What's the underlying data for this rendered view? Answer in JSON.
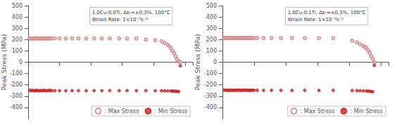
{
  "chart_data": [
    {
      "type": "scatter",
      "annotations": [
        "1.0Cu-0.0Ti, Δεₜ=±0.3%, 100°C",
        "Strain Rate: 1×10⁻³s⁻¹"
      ],
      "y_label": "Peak Stress (MPa)",
      "xlim": [
        0,
        105
      ],
      "xticks": [
        0,
        20,
        40,
        60,
        80,
        100
      ],
      "ylim": [
        -500,
        500
      ],
      "yticks": [
        -400,
        -300,
        -200,
        -100,
        0,
        100,
        200,
        300,
        400,
        500
      ],
      "grid": false,
      "legend": "lower right",
      "tick_labels": "y",
      "series": [
        {
          "name": ": Max Stress",
          "color": "#d08080",
          "marker": "open circle",
          "x": [
            1,
            2,
            3,
            4,
            5,
            6,
            7,
            8,
            9,
            10,
            11,
            12,
            13,
            14,
            15,
            17,
            20,
            24,
            28,
            32,
            37,
            42,
            47,
            52,
            58,
            63,
            69,
            75,
            81,
            85,
            87,
            89,
            90,
            91,
            92,
            93,
            94,
            95,
            96,
            97
          ],
          "values": [
            210,
            208,
            211,
            209,
            210,
            212,
            207,
            210,
            211,
            208,
            210,
            210,
            209,
            211,
            210,
            210,
            210,
            209,
            210,
            210,
            209,
            210,
            209,
            210,
            210,
            210,
            210,
            200,
            195,
            185,
            170,
            155,
            140,
            125,
            100,
            80,
            50,
            25,
            8,
            0
          ]
        },
        {
          "name": ": Min Stress",
          "color": "#cc2222",
          "marker": "circle",
          "x": [
            1,
            2,
            3,
            4,
            5,
            6,
            7,
            8,
            9,
            10,
            11,
            12,
            13,
            14,
            15,
            17,
            20,
            24,
            28,
            32,
            37,
            42,
            47,
            52,
            58,
            63,
            69,
            75,
            81,
            85,
            87,
            89,
            91,
            92,
            93,
            94,
            95,
            96,
            97
          ],
          "values": [
            -248,
            -251,
            -250,
            -253,
            -249,
            -252,
            -251,
            -250,
            -252,
            -249,
            -251,
            -252,
            -250,
            -249,
            -251,
            -251,
            -251,
            -252,
            -251,
            -251,
            -252,
            -251,
            -252,
            -251,
            -251,
            -251,
            -252,
            -251,
            -252,
            -252,
            -253,
            -253,
            -254,
            -255,
            -256,
            -257,
            -258,
            -260,
            -32
          ]
        }
      ]
    },
    {
      "type": "scatter",
      "annotations": [
        "1.0Cu-0.1Ti, Δεₜ=±0.3%, 100°C",
        "Strain Rate: 1×10⁻³s⁻¹"
      ],
      "y_label": "Peak Stress (MPa)",
      "xlim": [
        0,
        105
      ],
      "xticks": [
        0,
        20,
        40,
        60,
        80,
        100
      ],
      "ylim": [
        -500,
        500
      ],
      "yticks": [
        -400,
        -300,
        -200,
        -100,
        0,
        100,
        200,
        300,
        400,
        500
      ],
      "grid": false,
      "legend": "lower right",
      "tick_labels": "y",
      "series": [
        {
          "name": ": Max Stress",
          "color": "#d08080",
          "marker": "open circle",
          "x": [
            1,
            2,
            3,
            4,
            5,
            6,
            7,
            8,
            9,
            10,
            11,
            12,
            13,
            14,
            15,
            16,
            17,
            18,
            19,
            20,
            22,
            26,
            31,
            37,
            44,
            52,
            61,
            70,
            82,
            85,
            87,
            89,
            90,
            91,
            92,
            93,
            94,
            95,
            96
          ],
          "values": [
            215,
            213,
            214,
            216,
            213,
            215,
            214,
            216,
            213,
            215,
            214,
            213,
            215,
            214,
            213,
            215,
            214,
            215,
            213,
            214,
            214,
            213,
            214,
            213,
            214,
            213,
            213,
            213,
            190,
            175,
            160,
            145,
            135,
            125,
            105,
            85,
            55,
            30,
            0
          ]
        },
        {
          "name": ": Min Stress",
          "color": "#cc2222",
          "marker": "circle",
          "x": [
            1,
            2,
            3,
            4,
            5,
            6,
            7,
            8,
            9,
            10,
            11,
            12,
            13,
            14,
            15,
            16,
            17,
            18,
            19,
            20,
            22,
            26,
            31,
            37,
            44,
            52,
            61,
            70,
            82,
            85,
            87,
            89,
            91,
            92,
            93,
            94,
            95,
            96
          ],
          "values": [
            -245,
            -248,
            -247,
            -250,
            -246,
            -249,
            -248,
            -247,
            -249,
            -246,
            -248,
            -249,
            -247,
            -246,
            -248,
            -247,
            -249,
            -248,
            -247,
            -248,
            -248,
            -249,
            -248,
            -249,
            -249,
            -248,
            -249,
            -248,
            -250,
            -251,
            -252,
            -253,
            -254,
            -255,
            -257,
            -259,
            -261,
            -28
          ]
        }
      ]
    }
  ]
}
